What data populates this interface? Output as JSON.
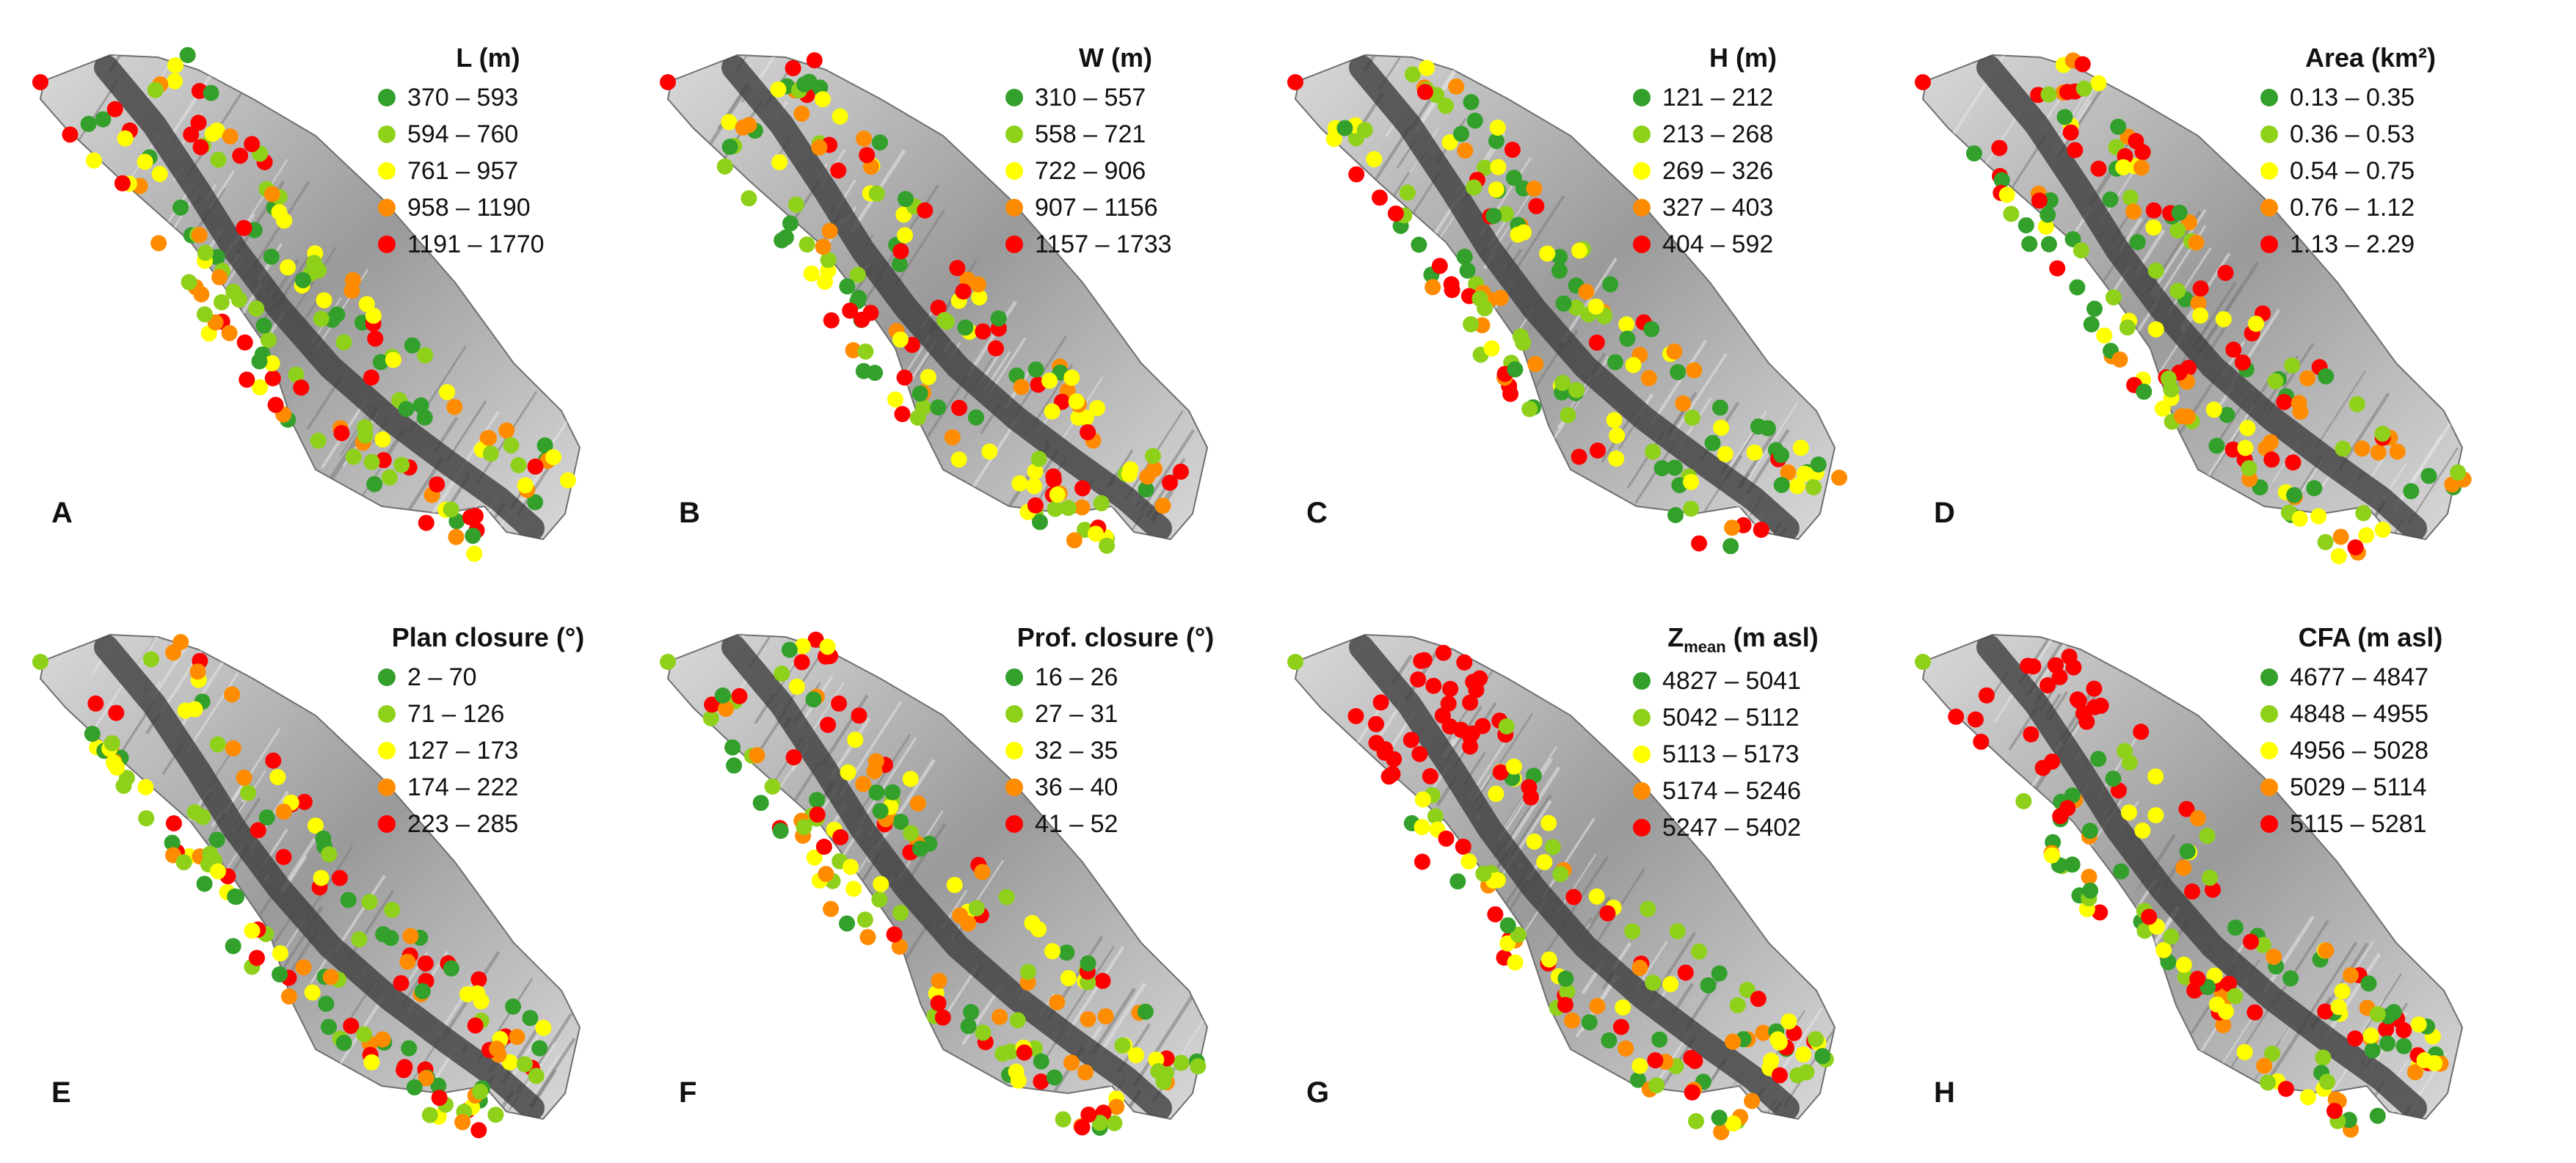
{
  "class_colors": [
    "#33a02c",
    "#8fd11a",
    "#ffff00",
    "#ff8c00",
    "#ff0000"
  ],
  "relief_colors": {
    "ridge": "#3d3d3d",
    "slope": "#9a9a9a",
    "lowland": "#d9d9d9",
    "outline": "#6f6f6f"
  },
  "panels": [
    {
      "letter": "A",
      "title": "L (m)",
      "title_html": "",
      "classes": [
        "370 – 593",
        "594 – 760",
        "761 – 957",
        "958 – 1190",
        "1191 – 1770"
      ]
    },
    {
      "letter": "B",
      "title": "W (m)",
      "title_html": "",
      "classes": [
        "310 – 557",
        "558 – 721",
        "722 – 906",
        "907 – 1156",
        "1157 – 1733"
      ]
    },
    {
      "letter": "C",
      "title": "H (m)",
      "title_html": "",
      "classes": [
        "121 – 212",
        "213 – 268",
        "269 – 326",
        "327 – 403",
        "404 – 592"
      ]
    },
    {
      "letter": "D",
      "title": "Area (km²)",
      "title_html": "",
      "classes": [
        "0.13 – 0.35",
        "0.36 – 0.53",
        "0.54 – 0.75",
        "0.76 – 1.12",
        "1.13 – 2.29"
      ]
    },
    {
      "letter": "E",
      "title": "Plan closure (°)",
      "title_html": "",
      "classes": [
        "2 – 70",
        "71 – 126",
        "127 – 173",
        "174 – 222",
        "223 – 285"
      ]
    },
    {
      "letter": "F",
      "title": "Prof. closure (°)",
      "title_html": "",
      "classes": [
        "16 – 26",
        "27 – 31",
        "32 – 35",
        "36 – 40",
        "41 – 52"
      ]
    },
    {
      "letter": "G",
      "title": "Zmean (m asl)",
      "title_html": "Z<sub>mean</sub> (m asl)",
      "classes": [
        "4827 – 5041",
        "5042 – 5112",
        "5113 – 5173",
        "5174 – 5246",
        "5247 – 5402"
      ]
    },
    {
      "letter": "H",
      "title": "CFA (m asl)",
      "title_html": "",
      "classes": [
        "4677 – 4847",
        "4848 – 4955",
        "4956 – 5028",
        "5029 – 5114",
        "5115 – 5281"
      ]
    }
  ]
}
